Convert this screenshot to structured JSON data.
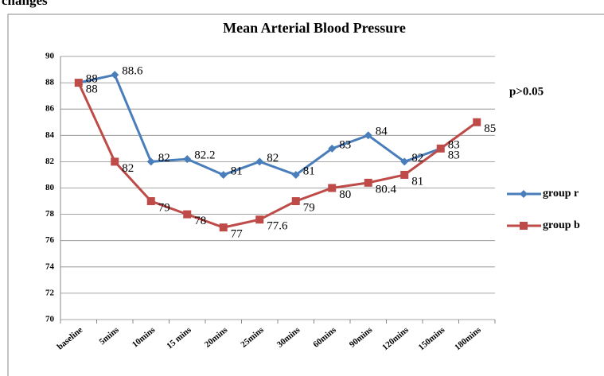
{
  "chart_data": {
    "type": "line",
    "caption": "changes",
    "title": "Mean Arterial Blood Pressure",
    "annotation": "p>0.05",
    "categories": [
      "baseline",
      "5mins",
      "10mins",
      "15 mins",
      "20mins",
      "25mins",
      "30mins",
      "60mins",
      "90mins",
      "120mins",
      "150mins",
      "180mins"
    ],
    "series": [
      {
        "name": "group r",
        "color": "#4a7ebb",
        "marker": "diamond",
        "values": [
          88,
          88.6,
          82,
          82.2,
          81,
          82,
          81,
          83,
          84,
          82,
          83,
          null
        ]
      },
      {
        "name": "group b",
        "color": "#be4b48",
        "marker": "square",
        "values": [
          88,
          82,
          79,
          78,
          77,
          77.6,
          79,
          80,
          80.4,
          81,
          83,
          85
        ]
      }
    ],
    "ylim": [
      70,
      90
    ],
    "yticks": [
      70,
      72,
      74,
      76,
      78,
      80,
      82,
      84,
      86,
      88,
      90
    ],
    "grid": true,
    "legend": "right"
  }
}
